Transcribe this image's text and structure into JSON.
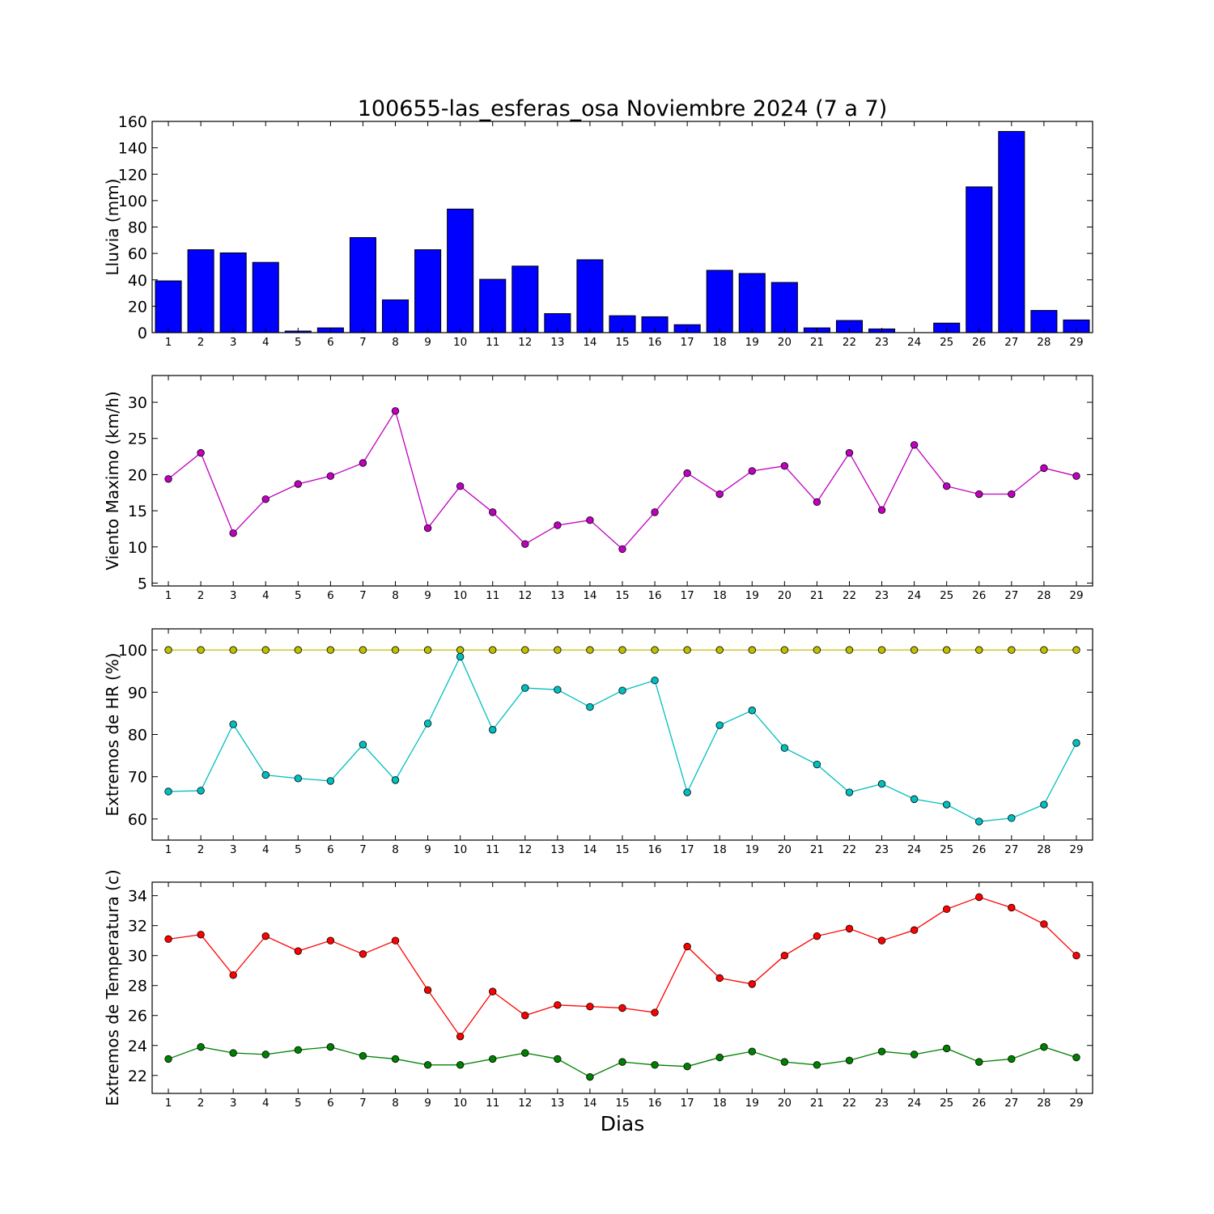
{
  "figure": {
    "title": "100655-las_esferas_osa Noviembre 2024  (7 a 7)",
    "xlabel": "Dias"
  },
  "colors": {
    "rain": "#0000ff",
    "wind": "#bf00bf",
    "hr_max": "#bfbf00",
    "hr_min": "#00bfbf",
    "temp_max": "#ff0000",
    "temp_min": "#008000"
  },
  "chart_data": [
    {
      "type": "bar",
      "ylabel": "Lluvia (mm)",
      "ylim": [
        0,
        160
      ],
      "yticks": [
        0,
        20,
        40,
        60,
        80,
        100,
        120,
        140,
        160
      ],
      "categories": [
        1,
        2,
        3,
        4,
        5,
        6,
        7,
        8,
        9,
        10,
        11,
        12,
        13,
        14,
        15,
        16,
        17,
        18,
        19,
        20,
        21,
        22,
        23,
        24,
        25,
        26,
        27,
        28,
        29
      ],
      "series": [
        {
          "values": [
            39.2,
            62.8,
            60.4,
            53.2,
            1.2,
            3.6,
            72.0,
            24.8,
            62.8,
            93.6,
            40.4,
            50.4,
            14.4,
            55.2,
            12.8,
            12.0,
            6.0,
            47.2,
            44.8,
            38.0,
            3.6,
            9.2,
            2.8,
            0.0,
            7.2,
            110.4,
            152.4,
            16.8,
            9.6
          ]
        }
      ]
    },
    {
      "type": "line",
      "ylabel": "Viento Maximo (km/h)",
      "ylim": [
        4.6,
        33.7
      ],
      "yticks": [
        5,
        10,
        15,
        20,
        25,
        30
      ],
      "x": [
        1,
        2,
        3,
        4,
        5,
        6,
        7,
        8,
        9,
        10,
        11,
        12,
        13,
        14,
        15,
        16,
        17,
        18,
        19,
        20,
        21,
        22,
        23,
        24,
        25,
        26,
        27,
        28,
        29
      ],
      "series": [
        {
          "values": [
            19.4,
            23.0,
            11.9,
            16.6,
            18.7,
            19.8,
            21.6,
            28.8,
            12.6,
            18.4,
            14.8,
            10.4,
            13.0,
            13.7,
            9.7,
            14.8,
            20.2,
            17.3,
            20.5,
            21.2,
            16.2,
            23.0,
            15.1,
            24.1,
            18.4,
            17.3,
            17.3,
            20.9,
            19.8
          ]
        }
      ]
    },
    {
      "type": "line",
      "ylabel": "Extremos de HR (%)",
      "ylim": [
        55,
        105
      ],
      "yticks": [
        60,
        70,
        80,
        90,
        100
      ],
      "x": [
        1,
        2,
        3,
        4,
        5,
        6,
        7,
        8,
        9,
        10,
        11,
        12,
        13,
        14,
        15,
        16,
        17,
        18,
        19,
        20,
        21,
        22,
        23,
        24,
        25,
        26,
        27,
        28,
        29
      ],
      "series": [
        {
          "key": "max",
          "values": [
            100,
            100,
            100,
            100,
            100,
            100,
            100,
            100,
            100,
            100,
            100,
            100,
            100,
            100,
            100,
            100,
            100,
            100,
            100,
            100,
            100,
            100,
            100,
            100,
            100,
            100,
            100,
            100,
            100
          ]
        },
        {
          "key": "min",
          "values": [
            66.5,
            66.7,
            82.4,
            70.4,
            69.6,
            69.0,
            77.6,
            69.2,
            82.6,
            98.4,
            81.1,
            91.0,
            90.6,
            86.5,
            90.4,
            92.8,
            66.3,
            82.2,
            85.7,
            76.8,
            72.9,
            66.3,
            68.3,
            64.7,
            63.4,
            59.4,
            60.2,
            63.4,
            78.0
          ]
        }
      ]
    },
    {
      "type": "line",
      "ylabel": "Extremos de Temperatura (c)",
      "ylim": [
        20.8,
        34.9
      ],
      "yticks": [
        22,
        24,
        26,
        28,
        30,
        32,
        34
      ],
      "x": [
        1,
        2,
        3,
        4,
        5,
        6,
        7,
        8,
        9,
        10,
        11,
        12,
        13,
        14,
        15,
        16,
        17,
        18,
        19,
        20,
        21,
        22,
        23,
        24,
        25,
        26,
        27,
        28,
        29
      ],
      "series": [
        {
          "key": "max",
          "values": [
            31.1,
            31.4,
            28.7,
            31.3,
            30.3,
            31.0,
            30.1,
            31.0,
            27.7,
            24.6,
            27.6,
            26.0,
            26.7,
            26.6,
            26.5,
            26.2,
            30.6,
            28.5,
            28.1,
            30.0,
            31.3,
            31.8,
            31.0,
            31.7,
            33.1,
            33.9,
            33.2,
            32.1,
            30.0
          ]
        },
        {
          "key": "min",
          "values": [
            23.1,
            23.9,
            23.5,
            23.4,
            23.7,
            23.9,
            23.3,
            23.1,
            22.7,
            22.7,
            23.1,
            23.5,
            23.1,
            21.9,
            22.9,
            22.7,
            22.6,
            23.2,
            23.6,
            22.9,
            22.7,
            23.0,
            23.6,
            23.4,
            23.8,
            22.9,
            23.1,
            23.9,
            23.2
          ]
        }
      ]
    }
  ]
}
